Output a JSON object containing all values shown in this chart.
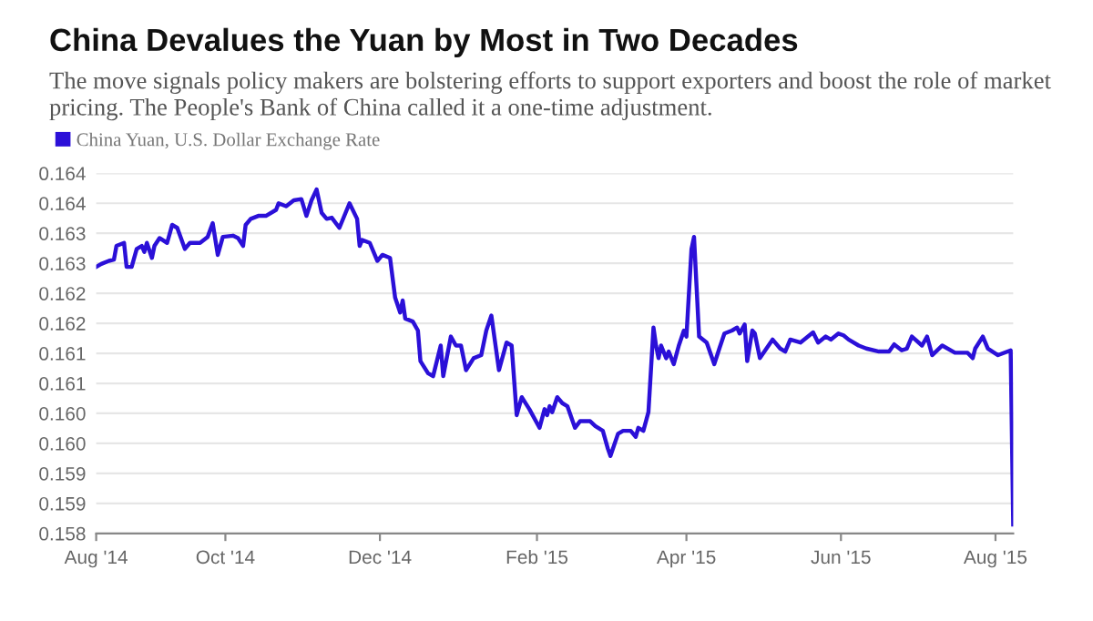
{
  "chart_data": {
    "type": "line",
    "title": "China Devalues the Yuan by Most in Two Decades",
    "subtitle": "The move signals policy makers are bolstering efforts to support exporters and boost the role of market pricing. The People's Bank of China called it a one-time adjustment.",
    "x": [
      "2014-08-11",
      "2014-08-13",
      "2014-08-16",
      "2014-08-18",
      "2014-08-19",
      "2014-08-22",
      "2014-08-23",
      "2014-08-25",
      "2014-08-27",
      "2014-08-29",
      "2014-08-30",
      "2014-08-31",
      "2014-09-02",
      "2014-09-03",
      "2014-09-05",
      "2014-09-08",
      "2014-09-10",
      "2014-09-12",
      "2014-09-15",
      "2014-09-17",
      "2014-09-21",
      "2014-09-24",
      "2014-09-26",
      "2014-09-28",
      "2014-09-30",
      "2014-10-04",
      "2014-10-06",
      "2014-10-08",
      "2014-10-09",
      "2014-10-11",
      "2014-10-14",
      "2014-10-17",
      "2014-10-21",
      "2014-10-22",
      "2014-10-25",
      "2014-10-28",
      "2014-10-31",
      "2014-11-02",
      "2014-11-04",
      "2014-11-06",
      "2014-11-08",
      "2014-11-10",
      "2014-11-12",
      "2014-11-15",
      "2014-11-19",
      "2014-11-22",
      "2014-11-23",
      "2014-11-24",
      "2014-11-27",
      "2014-11-30",
      "2014-12-02",
      "2014-12-05",
      "2014-12-07",
      "2014-12-09",
      "2014-12-10",
      "2014-12-11",
      "2014-12-14",
      "2014-12-16",
      "2014-12-17",
      "2014-12-20",
      "2014-12-22",
      "2014-12-25",
      "2014-12-26",
      "2014-12-29",
      "2014-12-31",
      "2015-01-02",
      "2015-01-04",
      "2015-01-07",
      "2015-01-10",
      "2015-01-12",
      "2015-01-14",
      "2015-01-17",
      "2015-01-20",
      "2015-01-22",
      "2015-01-24",
      "2015-01-26",
      "2015-01-29",
      "2015-02-02",
      "2015-02-04",
      "2015-02-05",
      "2015-02-06",
      "2015-02-07",
      "2015-02-09",
      "2015-02-11",
      "2015-02-13",
      "2015-02-16",
      "2015-02-18",
      "2015-02-22",
      "2015-02-24",
      "2015-02-27",
      "2015-03-01",
      "2015-03-02",
      "2015-03-05",
      "2015-03-07",
      "2015-03-10",
      "2015-03-12",
      "2015-03-13",
      "2015-03-15",
      "2015-03-17",
      "2015-03-19",
      "2015-03-20",
      "2015-03-21",
      "2015-03-22",
      "2015-03-24",
      "2015-03-25",
      "2015-03-27",
      "2015-03-29",
      "2015-03-31",
      "2015-04-01",
      "2015-04-03",
      "2015-04-04",
      "2015-04-06",
      "2015-04-09",
      "2015-04-12",
      "2015-04-14",
      "2015-04-16",
      "2015-04-19",
      "2015-04-21",
      "2015-04-22",
      "2015-04-24",
      "2015-04-25",
      "2015-04-27",
      "2015-04-28",
      "2015-04-30",
      "2015-05-05",
      "2015-05-08",
      "2015-05-10",
      "2015-05-12",
      "2015-05-16",
      "2015-05-21",
      "2015-05-23",
      "2015-05-26",
      "2015-05-28",
      "2015-05-31",
      "2015-06-02",
      "2015-06-04",
      "2015-06-08",
      "2015-06-11",
      "2015-06-16",
      "2015-06-20",
      "2015-06-22",
      "2015-06-25",
      "2015-06-27",
      "2015-06-29",
      "2015-07-03",
      "2015-07-05",
      "2015-07-07",
      "2015-07-11",
      "2015-07-16",
      "2015-07-21",
      "2015-07-23",
      "2015-07-24",
      "2015-07-27",
      "2015-07-29",
      "2015-08-02",
      "2015-08-07",
      "2015-08-08"
    ],
    "series": [
      {
        "name": "China Yuan, U.S. Dollar Exchange Rate",
        "color": "#2b10d8",
        "values": [
          0.16244,
          0.16249,
          0.16254,
          0.16256,
          0.16279,
          0.16284,
          0.16244,
          0.16244,
          0.16274,
          0.16279,
          0.16269,
          0.16284,
          0.16259,
          0.16279,
          0.16292,
          0.16284,
          0.16314,
          0.16309,
          0.16274,
          0.16284,
          0.16284,
          0.16294,
          0.16317,
          0.16264,
          0.16294,
          0.16296,
          0.16292,
          0.16279,
          0.16314,
          0.16324,
          0.16329,
          0.16329,
          0.16339,
          0.1635,
          0.16345,
          0.16355,
          0.16357,
          0.16329,
          0.16355,
          0.16373,
          0.16334,
          0.16324,
          0.16326,
          0.16309,
          0.1635,
          0.16324,
          0.16279,
          0.16289,
          0.16284,
          0.16254,
          0.16264,
          0.16259,
          0.16193,
          0.16168,
          0.16188,
          0.16158,
          0.16153,
          0.16138,
          0.16087,
          0.16067,
          0.16062,
          0.16113,
          0.16062,
          0.16128,
          0.16113,
          0.16113,
          0.16072,
          0.16092,
          0.16097,
          0.16138,
          0.16163,
          0.16072,
          0.16118,
          0.16113,
          0.15997,
          0.16027,
          0.16007,
          0.15976,
          0.16007,
          0.15997,
          0.16012,
          0.16002,
          0.16027,
          0.16017,
          0.16012,
          0.15976,
          0.15987,
          0.15987,
          0.15979,
          0.15971,
          0.15941,
          0.15929,
          0.15966,
          0.15971,
          0.15971,
          0.15961,
          0.15976,
          0.15971,
          0.16002,
          0.16143,
          0.16113,
          0.16092,
          0.16113,
          0.16092,
          0.16103,
          0.16082,
          0.16113,
          0.16138,
          0.16128,
          0.16274,
          0.16294,
          0.16128,
          0.16118,
          0.16082,
          0.16108,
          0.16133,
          0.16138,
          0.16143,
          0.16133,
          0.16148,
          0.16087,
          0.16138,
          0.16133,
          0.16092,
          0.16123,
          0.16108,
          0.16103,
          0.16123,
          0.16118,
          0.16135,
          0.16118,
          0.16128,
          0.16123,
          0.16133,
          0.1613,
          0.16123,
          0.16113,
          0.16108,
          0.16103,
          0.16103,
          0.16115,
          0.16105,
          0.16108,
          0.16128,
          0.16113,
          0.16128,
          0.16097,
          0.16113,
          0.16101,
          0.16101,
          0.16092,
          0.16108,
          0.16128,
          0.16108,
          0.16097,
          0.16105,
          0.15815
        ]
      }
    ],
    "xlim": [
      "2014-08-11",
      "2015-08-08"
    ],
    "xticks": [
      {
        "value": "2014-08-11",
        "label": "Aug '14"
      },
      {
        "value": "2014-10-01",
        "label": "Oct '14"
      },
      {
        "value": "2014-12-01",
        "label": "Dec '14"
      },
      {
        "value": "2015-02-01",
        "label": "Feb '15"
      },
      {
        "value": "2015-04-01",
        "label": "Apr '15"
      },
      {
        "value": "2015-06-01",
        "label": "Jun '15"
      },
      {
        "value": "2015-08-01",
        "label": "Aug '15"
      }
    ],
    "ylim": [
      0.158,
      0.164
    ],
    "yticks": [
      0.158,
      {
        "value": 0.1585,
        "label": "0.159"
      },
      0.159,
      {
        "value": 0.1595,
        "label": "0.160"
      },
      {
        "value": 0.16,
        "label": "0.160"
      },
      {
        "value": 0.1605,
        "label": "0.161"
      },
      0.161,
      {
        "value": 0.1615,
        "label": "0.162"
      },
      0.162,
      {
        "value": 0.1625,
        "label": "0.163"
      },
      0.163,
      {
        "value": 0.1635,
        "label": "0.164"
      },
      0.164
    ],
    "grid": "y",
    "legend": "top left",
    "marker": "none",
    "line_style": "solid"
  }
}
